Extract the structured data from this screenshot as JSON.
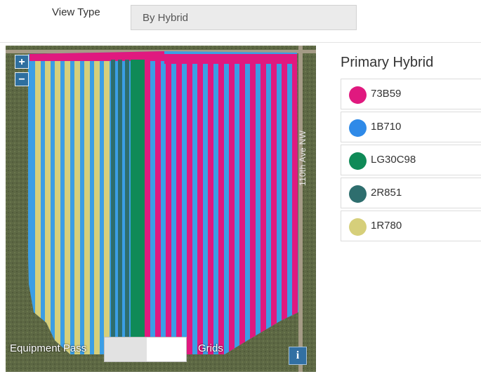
{
  "view_type": {
    "label": "View Type",
    "selected": "By Hybrid"
  },
  "map": {
    "zoom_in": "+",
    "zoom_out": "−",
    "road_label": "110th Ave NW",
    "equipment_pass_label": "Equipment Pass",
    "grids_label": "Grids",
    "info_button": "i",
    "toggle_state": "Equipment Pass"
  },
  "legend": {
    "title": "Primary Hybrid",
    "items": [
      {
        "label": "73B59",
        "color": "#e0197f"
      },
      {
        "label": "1B710",
        "color": "#2f8ae8"
      },
      {
        "label": "LG30C98",
        "color": "#0f8a57"
      },
      {
        "label": "2R851",
        "color": "#2e6e6e"
      },
      {
        "label": "1R780",
        "color": "#d6cf7a"
      }
    ]
  },
  "colors": {
    "field_base": "#3b9ee5",
    "road": "#a59b86"
  }
}
